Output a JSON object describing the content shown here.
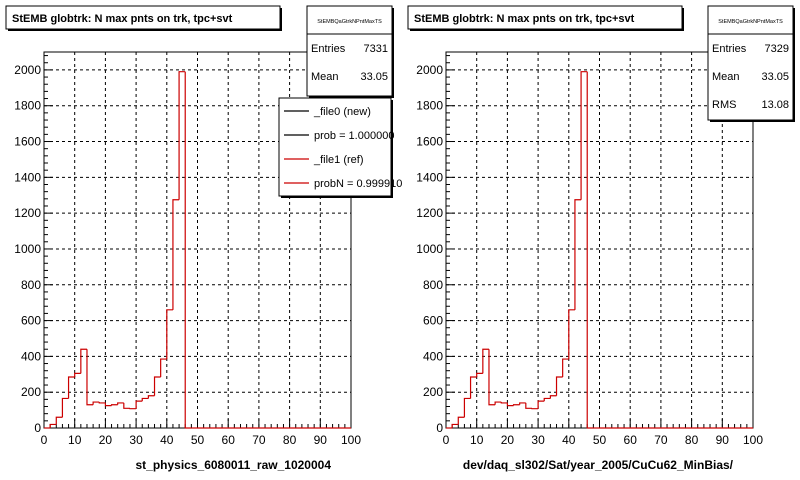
{
  "chart_data": [
    {
      "type": "bar",
      "title": "StEMB globtrk: N max pnts on trk, tpc+svt",
      "stats_box_title": "StEMBQaGtrkNPntMaxTS",
      "stats": [
        {
          "label": "Entries",
          "value": "7331"
        },
        {
          "label": "Mean",
          "value": "33.05"
        }
      ],
      "xlabel": "st_physics_6080011_raw_1020004",
      "ylabel": "",
      "xlim": [
        0,
        100
      ],
      "ylim": [
        0,
        2100
      ],
      "xticks": [
        "0",
        "10",
        "20",
        "30",
        "40",
        "50",
        "60",
        "70",
        "80",
        "90",
        "100"
      ],
      "yticks": [
        "0",
        "200",
        "400",
        "600",
        "800",
        "1000",
        "1200",
        "1400",
        "1600",
        "1800",
        "2000"
      ],
      "grid": true,
      "legend_position": "top-right",
      "legend": [
        {
          "label": "_file0 (new)",
          "color": "#000000"
        },
        {
          "label": "prob = 1.000000",
          "color": "#000000"
        },
        {
          "label": "_file1 (ref)",
          "color": "#cc0000"
        },
        {
          "label": "probN = 0.999910",
          "color": "#cc0000"
        }
      ],
      "series": [
        {
          "color": "#cc0000",
          "bin_width": 2,
          "x": [
            0,
            2,
            4,
            6,
            8,
            10,
            12,
            14,
            16,
            18,
            20,
            22,
            24,
            26,
            28,
            30,
            32,
            34,
            36,
            38,
            40,
            42,
            44,
            46,
            48
          ],
          "values": [
            0,
            20,
            60,
            165,
            285,
            305,
            440,
            130,
            145,
            140,
            125,
            130,
            140,
            110,
            108,
            150,
            165,
            180,
            285,
            385,
            660,
            1275,
            1990,
            0,
            0
          ]
        }
      ]
    },
    {
      "type": "bar",
      "title": "StEMB globtrk: N max pnts on trk, tpc+svt",
      "stats_box_title": "StEMBQaGtrkNPntMaxTS",
      "stats": [
        {
          "label": "Entries",
          "value": "7329"
        },
        {
          "label": "Mean",
          "value": "33.05"
        },
        {
          "label": "RMS",
          "value": "13.08"
        }
      ],
      "xlabel": "dev/daq_sl302/Sat/year_2005/CuCu62_MinBias/",
      "ylabel": "",
      "xlim": [
        0,
        100
      ],
      "ylim": [
        0,
        2100
      ],
      "xticks": [
        "0",
        "10",
        "20",
        "30",
        "40",
        "50",
        "60",
        "70",
        "80",
        "90",
        "100"
      ],
      "yticks": [
        "0",
        "200",
        "400",
        "600",
        "800",
        "1000",
        "1200",
        "1400",
        "1600",
        "1800",
        "2000"
      ],
      "grid": true,
      "series": [
        {
          "color": "#cc0000",
          "bin_width": 2,
          "x": [
            0,
            2,
            4,
            6,
            8,
            10,
            12,
            14,
            16,
            18,
            20,
            22,
            24,
            26,
            28,
            30,
            32,
            34,
            36,
            38,
            40,
            42,
            44,
            46,
            48
          ],
          "values": [
            0,
            20,
            60,
            165,
            285,
            305,
            440,
            130,
            145,
            140,
            125,
            130,
            140,
            110,
            108,
            150,
            165,
            180,
            285,
            385,
            660,
            1275,
            1990,
            0,
            0
          ]
        }
      ]
    }
  ]
}
